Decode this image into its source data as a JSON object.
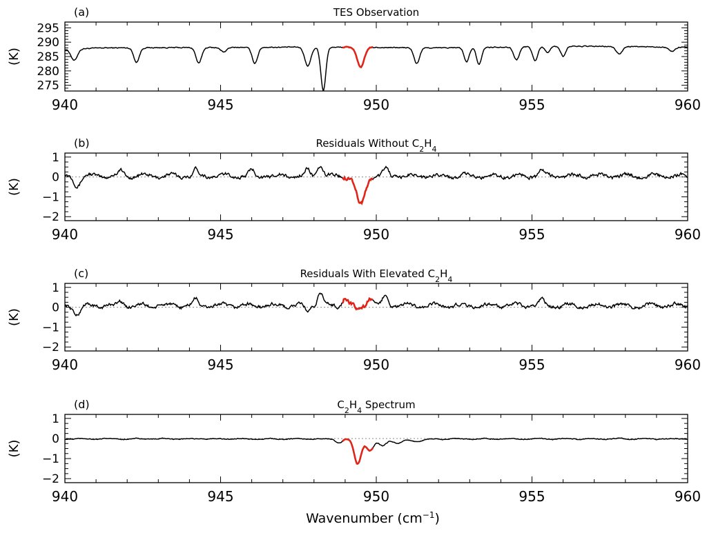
{
  "colors": {
    "trace": "#000000",
    "highlight": "#e02418",
    "zero_line": "#888888"
  },
  "x_axis": {
    "label_main": "Wavenumber (cm",
    "label_sup": "−1",
    "label_end": ")",
    "range": [
      940,
      960
    ],
    "ticks": [
      940,
      945,
      950,
      955,
      960
    ],
    "tick_labels": [
      "940",
      "945",
      "950",
      "955",
      "960"
    ]
  },
  "highlight_range": [
    948.9,
    949.9
  ],
  "chart_data": [
    {
      "type": "line",
      "panel": "(a)",
      "title_plain": "TES Observation",
      "ylabel": "(K)",
      "ylim": [
        273,
        297
      ],
      "yticks": [
        275,
        280,
        285,
        290,
        295
      ],
      "ytick_labels": [
        "275",
        "280",
        "285",
        "290",
        "295"
      ],
      "zero_line": false,
      "noise": 0.3,
      "baseline": [
        [
          940,
          287.5
        ],
        [
          941.2,
          288.0
        ],
        [
          948,
          288.3
        ],
        [
          952,
          288.0
        ],
        [
          956,
          288.6
        ],
        [
          960,
          288.3
        ]
      ],
      "dips": [
        [
          940.3,
          4.0,
          0.1
        ],
        [
          942.3,
          5.0,
          0.09
        ],
        [
          944.3,
          5.5,
          0.09
        ],
        [
          945.1,
          1.5,
          0.1
        ],
        [
          946.1,
          5.5,
          0.09
        ],
        [
          947.8,
          6.5,
          0.1
        ],
        [
          948.3,
          15.0,
          0.08
        ],
        [
          949.5,
          7.0,
          0.11
        ],
        [
          951.3,
          5.5,
          0.09
        ],
        [
          952.9,
          5.0,
          0.08
        ],
        [
          953.3,
          6.0,
          0.08
        ],
        [
          954.5,
          4.5,
          0.09
        ],
        [
          955.1,
          5.0,
          0.08
        ],
        [
          955.5,
          2.0,
          0.08
        ],
        [
          956.0,
          3.5,
          0.08
        ],
        [
          957.8,
          2.5,
          0.1
        ],
        [
          959.5,
          1.5,
          0.1
        ]
      ]
    },
    {
      "type": "line",
      "panel": "(b)",
      "title_plain": "Residuals Without C",
      "title_sub1": "2",
      "title_mid": "H",
      "title_sub2": "4",
      "ylabel": "(K)",
      "ylim": [
        -2.2,
        1.2
      ],
      "yticks": [
        -2,
        -1,
        0,
        1
      ],
      "ytick_labels": [
        "−2",
        "−1",
        "0",
        "1"
      ],
      "zero_line": true,
      "noise": 0.15,
      "offset": 0.05,
      "bumps": [
        [
          940.4,
          -0.45,
          0.1
        ],
        [
          941.8,
          0.25,
          0.08
        ],
        [
          944.2,
          0.3,
          0.08
        ],
        [
          946.0,
          0.25,
          0.08
        ],
        [
          947.8,
          0.3,
          0.08
        ],
        [
          948.2,
          0.55,
          0.08
        ],
        [
          949.5,
          -1.45,
          0.14
        ],
        [
          950.3,
          0.35,
          0.08
        ],
        [
          955.3,
          0.3,
          0.08
        ]
      ]
    },
    {
      "type": "line",
      "panel": "(c)",
      "title_plain": "Residuals With Elevated C",
      "title_sub1": "2",
      "title_mid": "H",
      "title_sub2": "4",
      "ylabel": "(K)",
      "ylim": [
        -2.2,
        1.2
      ],
      "yticks": [
        -2,
        -1,
        0,
        1
      ],
      "ytick_labels": [
        "−2",
        "−1",
        "0",
        "1"
      ],
      "zero_line": true,
      "noise": 0.15,
      "offset": 0.08,
      "bumps": [
        [
          940.4,
          -0.45,
          0.1
        ],
        [
          941.8,
          0.25,
          0.08
        ],
        [
          944.2,
          0.3,
          0.08
        ],
        [
          947.8,
          -0.3,
          0.08
        ],
        [
          948.2,
          0.7,
          0.08
        ],
        [
          949.0,
          0.45,
          0.08
        ],
        [
          949.4,
          -0.25,
          0.08
        ],
        [
          949.8,
          0.45,
          0.08
        ],
        [
          950.3,
          0.55,
          0.08
        ],
        [
          955.3,
          0.3,
          0.08
        ]
      ]
    },
    {
      "type": "line",
      "panel": "(d)",
      "title_plain": "C",
      "title_sub1": "2",
      "title_mid": "H",
      "title_sub2": "4",
      "title_end": " Spectrum",
      "ylabel": "(K)",
      "ylim": [
        -2.2,
        1.2
      ],
      "yticks": [
        -2,
        -1,
        0,
        1
      ],
      "ytick_labels": [
        "−2",
        "−1",
        "0",
        "1"
      ],
      "zero_line": true,
      "noise": 0.035,
      "offset": -0.02,
      "bumps": [
        [
          949.4,
          -1.25,
          0.11
        ],
        [
          949.8,
          -0.6,
          0.12
        ],
        [
          950.2,
          -0.35,
          0.12
        ],
        [
          950.7,
          -0.22,
          0.15
        ],
        [
          951.3,
          -0.12,
          0.2
        ],
        [
          948.8,
          -0.2,
          0.1
        ]
      ]
    }
  ]
}
